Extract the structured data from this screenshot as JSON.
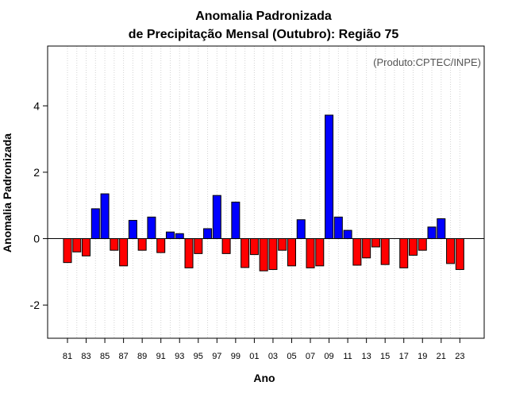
{
  "chart_data": {
    "type": "bar",
    "title_line1": "Anomalia Padronizada",
    "title_line2": "de Precipitação Mensal (Outubro): Região 75",
    "xlabel": "Ano",
    "ylabel": "Anomalia Padronizada",
    "credit": "(Produto:CPTEC/INPE)",
    "ylim": [
      -3,
      5.8
    ],
    "yticks": [
      -2,
      0,
      2,
      4
    ],
    "ytick_labels": [
      "-2",
      "0",
      "2",
      "4"
    ],
    "grid": "vertical dotted",
    "colors": {
      "positive": "#0000ff",
      "negative": "#ff0000",
      "grid": "#d3d3d3",
      "credit": "#555555"
    },
    "categories": [
      "81",
      "82",
      "83",
      "84",
      "85",
      "86",
      "87",
      "88",
      "89",
      "90",
      "91",
      "92",
      "93",
      "94",
      "95",
      "96",
      "97",
      "98",
      "99",
      "00",
      "01",
      "02",
      "03",
      "04",
      "05",
      "06",
      "07",
      "08",
      "09",
      "10",
      "11",
      "12",
      "13",
      "14",
      "15",
      "16",
      "17",
      "18",
      "19",
      "20",
      "21",
      "22",
      "23"
    ],
    "xtick_labels": [
      "81",
      "83",
      "85",
      "87",
      "89",
      "91",
      "93",
      "95",
      "97",
      "99",
      "01",
      "03",
      "05",
      "07",
      "09",
      "11",
      "13",
      "15",
      "17",
      "19",
      "21",
      "23"
    ],
    "values": [
      -0.72,
      -0.4,
      -0.52,
      0.9,
      1.35,
      -0.35,
      -0.82,
      0.55,
      -0.35,
      0.65,
      -0.42,
      0.2,
      0.15,
      -0.88,
      -0.45,
      0.3,
      1.3,
      -0.45,
      1.1,
      -0.87,
      -0.48,
      -0.97,
      -0.93,
      -0.35,
      -0.82,
      0.57,
      -0.88,
      -0.82,
      3.72,
      0.65,
      0.25,
      -0.8,
      -0.58,
      -0.25,
      -0.78,
      0.0,
      -0.88,
      -0.5,
      -0.35,
      0.35,
      0.6,
      -0.75,
      -0.93
    ]
  }
}
